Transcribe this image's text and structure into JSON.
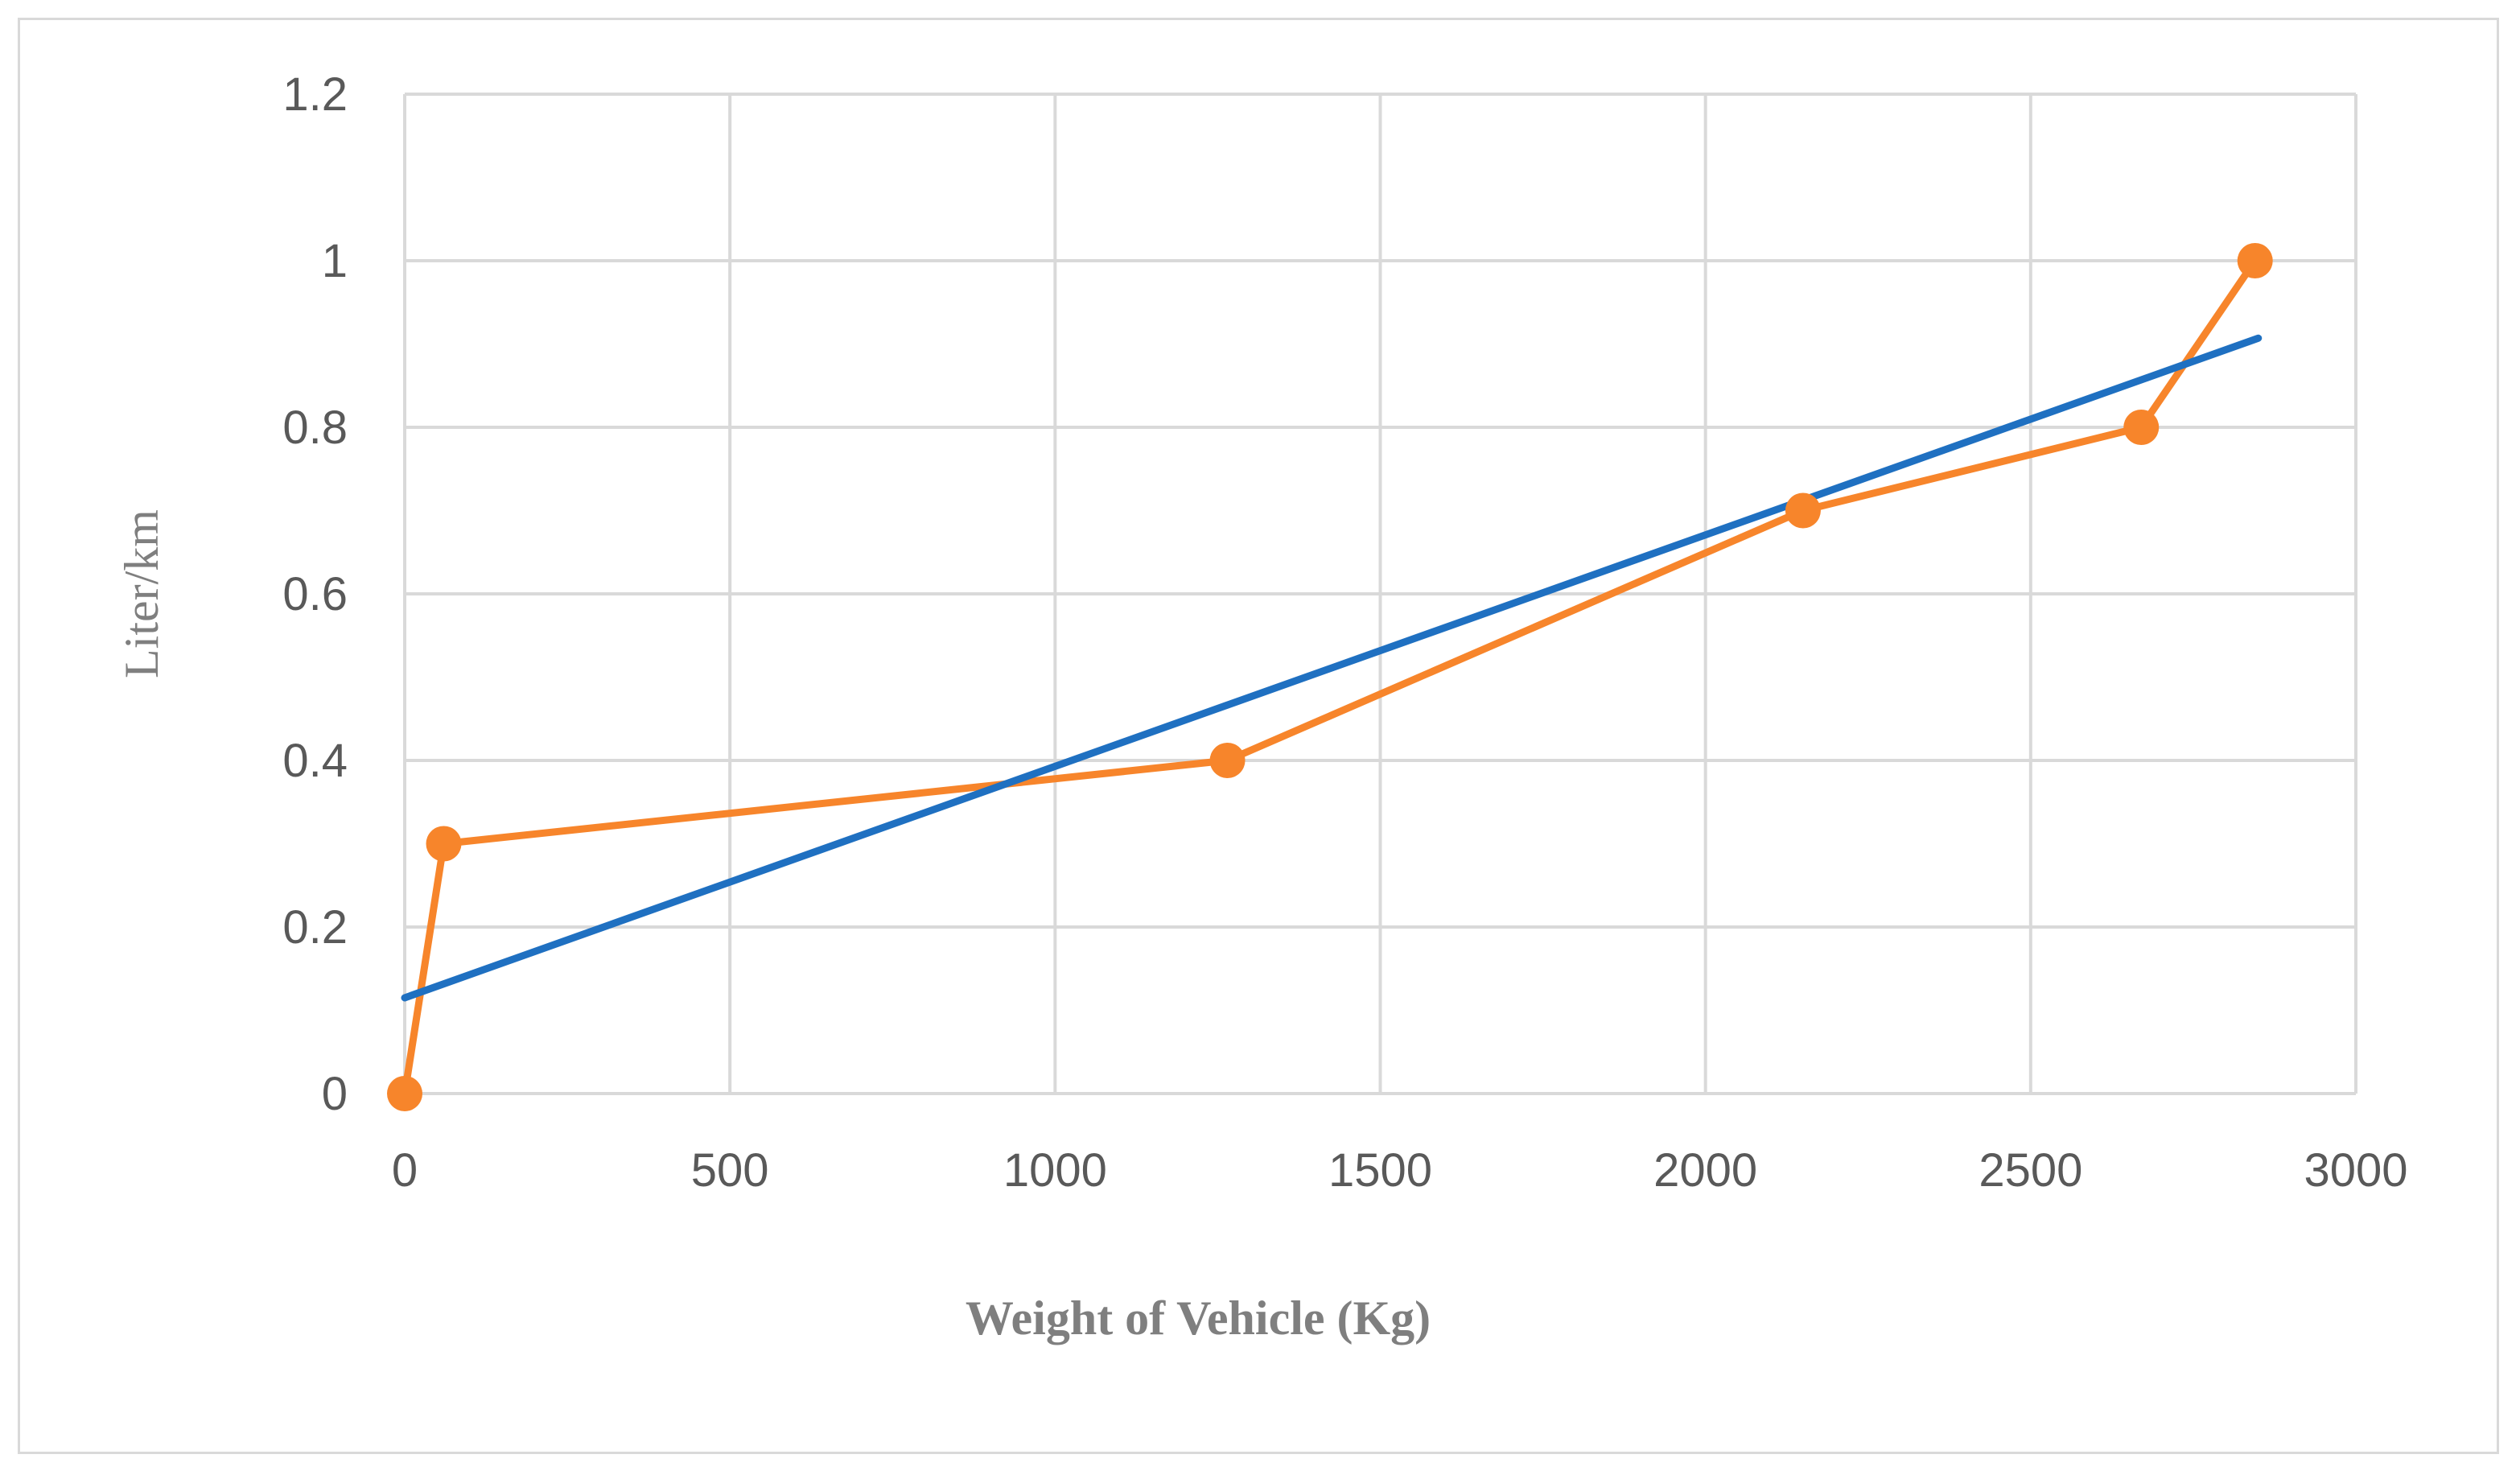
{
  "chart_data": {
    "type": "line",
    "title": "",
    "xlabel": "Weight of Vehicle (Kg)",
    "ylabel": "Liter/km",
    "xlim": [
      0,
      3000
    ],
    "ylim": [
      0,
      1.2
    ],
    "x_ticks": [
      "0",
      "500",
      "1000",
      "1500",
      "2000",
      "2500",
      "3000"
    ],
    "y_ticks": [
      "0",
      "0.2",
      "0.4",
      "0.6",
      "0.8",
      "1",
      "1.2"
    ],
    "x_tick_values": [
      0,
      500,
      1000,
      1500,
      2000,
      2500,
      3000
    ],
    "y_tick_values": [
      0,
      0.2,
      0.4,
      0.6,
      0.8,
      1.0,
      1.2
    ],
    "grid": true,
    "legend": "none",
    "series": [
      {
        "kind": "data",
        "color": "#f7852b",
        "markers": true,
        "points": [
          {
            "x": 0,
            "y": 0
          },
          {
            "x": 60,
            "y": 0.3
          },
          {
            "x": 1265,
            "y": 0.4
          },
          {
            "x": 2150,
            "y": 0.7
          },
          {
            "x": 2670,
            "y": 0.8
          },
          {
            "x": 2845,
            "y": 1.0
          }
        ]
      },
      {
        "kind": "trendline",
        "color": "#1f70c1",
        "markers": false,
        "points": [
          {
            "x": 0,
            "y": 0.115
          },
          {
            "x": 2850,
            "y": 0.907
          }
        ]
      }
    ]
  }
}
